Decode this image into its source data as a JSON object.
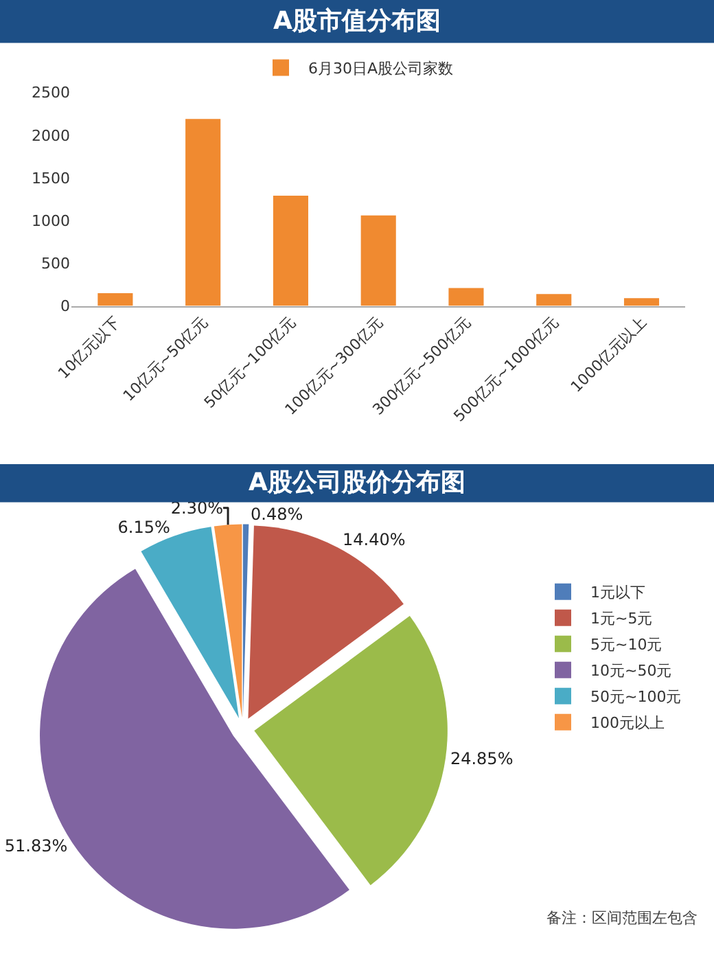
{
  "chart_data": [
    {
      "type": "bar",
      "title": "A股市值分布图",
      "categories": [
        "10亿元以下",
        "10亿元~50亿元",
        "50亿元~100亿元",
        "100亿元~300亿元",
        "300亿元~500亿元",
        "500亿元~1000亿元",
        "1000亿元以上"
      ],
      "series": [
        {
          "name": "6月30日A股公司家数",
          "color": "#f08a30",
          "values": [
            150,
            2190,
            1290,
            1060,
            210,
            140,
            90
          ]
        }
      ],
      "ylim": [
        0,
        2500
      ],
      "yticks": [
        0,
        500,
        1000,
        1500,
        2000,
        2500
      ],
      "grid": false,
      "legend": "top"
    },
    {
      "type": "pie",
      "title": "A股公司股价分布图",
      "categories": [
        "1元以下",
        "1元~5元",
        "5元~10元",
        "10元~50元",
        "50元~100元",
        "100元以上"
      ],
      "values": [
        0.48,
        14.4,
        24.85,
        51.83,
        6.15,
        2.3
      ],
      "value_labels": [
        "0.48%",
        "14.40%",
        "24.85%",
        "51.83%",
        "6.15%",
        "2.30%"
      ],
      "colors": [
        "#4f7dba",
        "#c0584a",
        "#9bbb4a",
        "#8064a1",
        "#4aacc6",
        "#f79646"
      ],
      "legend": "right",
      "annotations": [
        "备注：区间范围左包含"
      ]
    }
  ]
}
